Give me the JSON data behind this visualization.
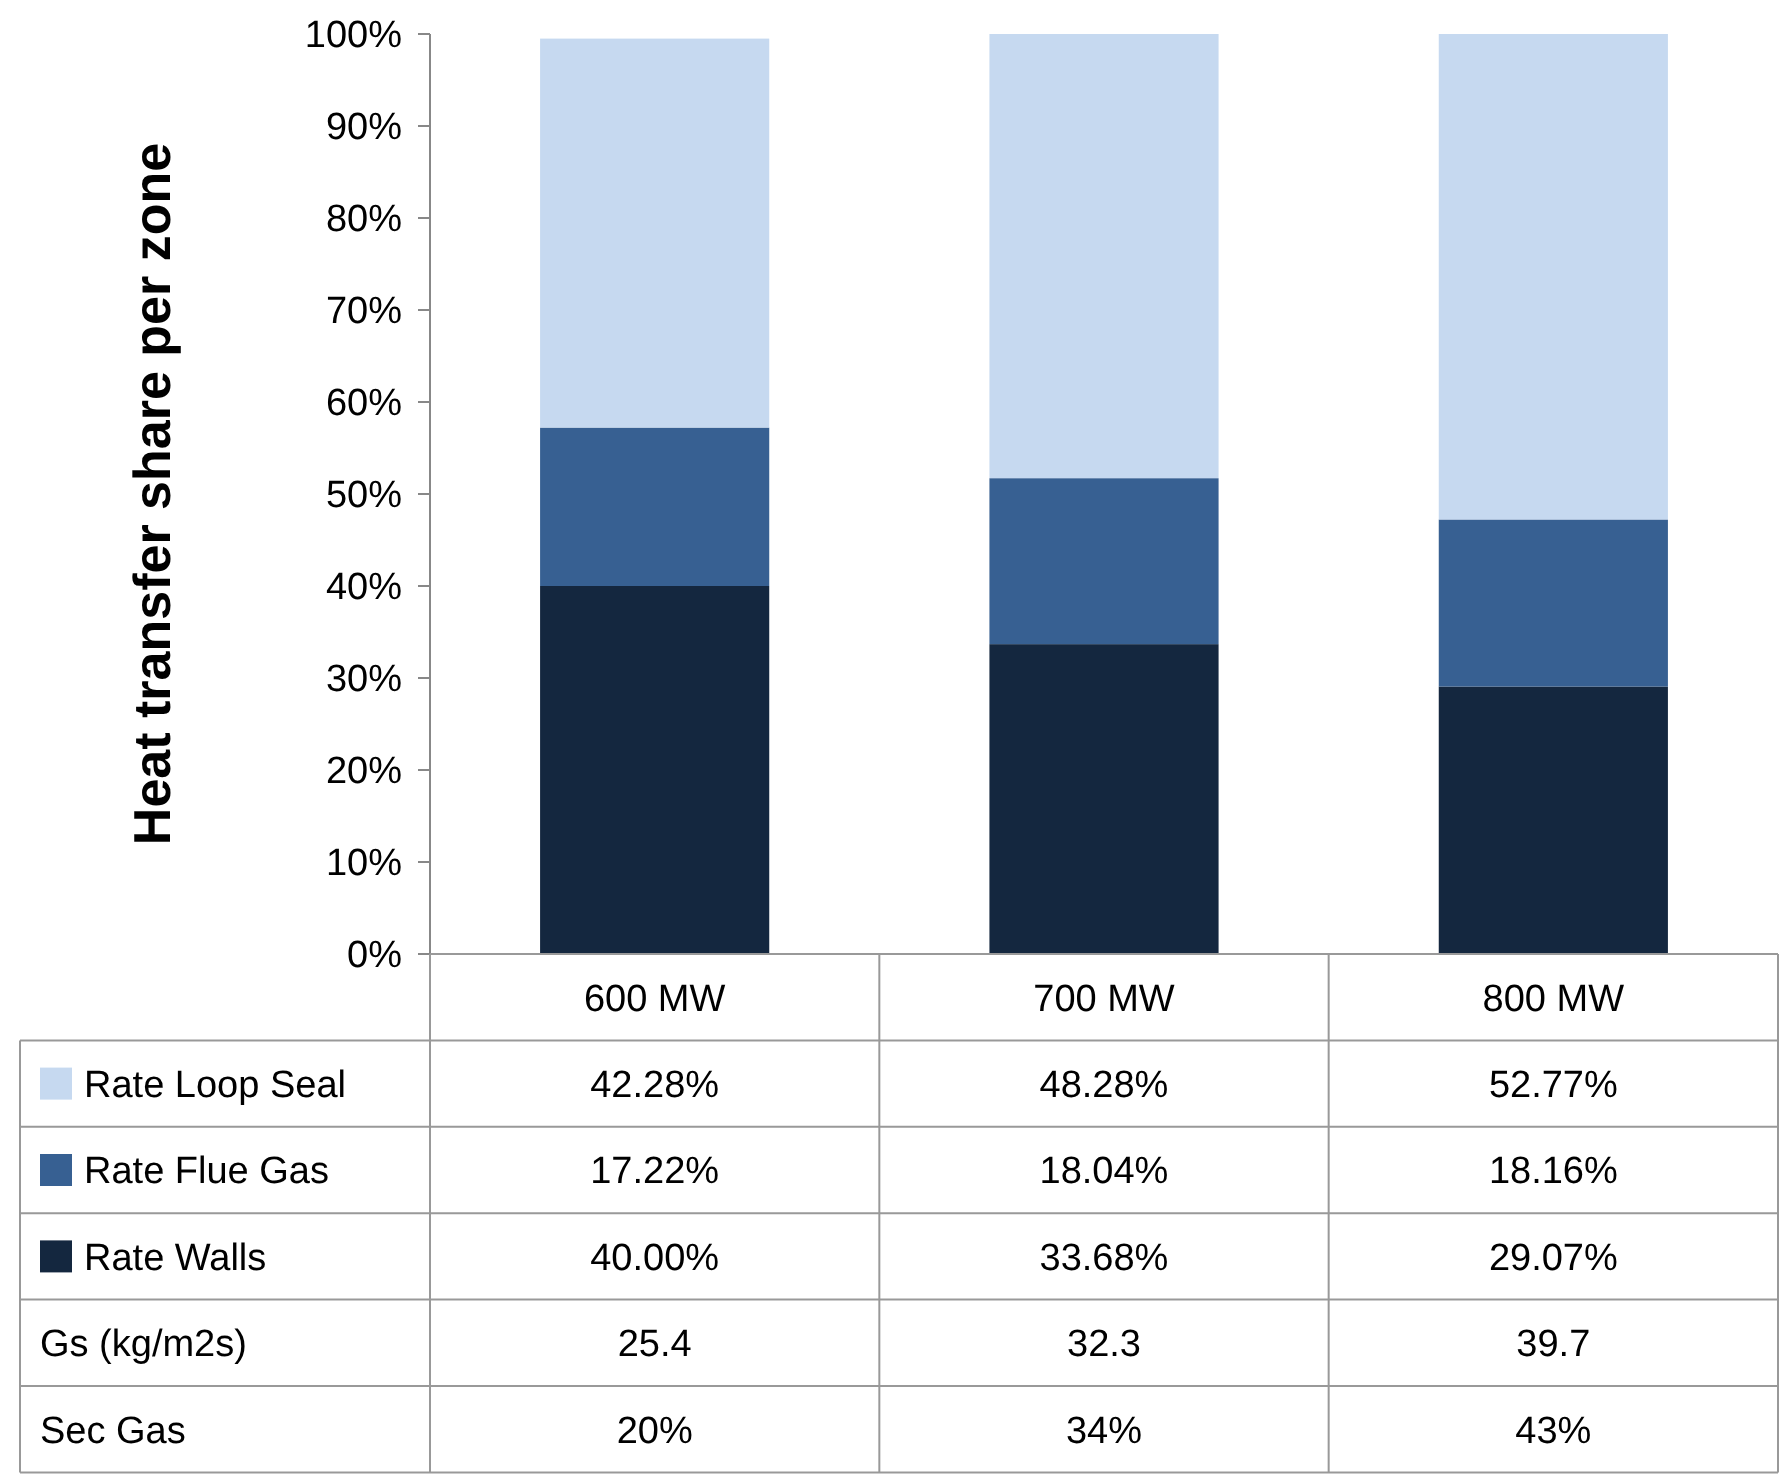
{
  "chart_data": {
    "type": "bar",
    "stacked": true,
    "ylabel": "Heat transfer share per zone",
    "categories": [
      "600 MW",
      "700 MW",
      "800 MW"
    ],
    "series": [
      {
        "name": "Rate Walls",
        "color": "#14273f",
        "values": [
          40.0,
          33.68,
          29.07
        ],
        "value_labels": [
          "40.00%",
          "33.68%",
          "29.07%"
        ]
      },
      {
        "name": "Rate Flue Gas",
        "color": "#376092",
        "values": [
          17.22,
          18.04,
          18.16
        ],
        "value_labels": [
          "17.22%",
          "18.04%",
          "18.16%"
        ]
      },
      {
        "name": "Rate Loop Seal",
        "color": "#c6d9f0",
        "values": [
          42.28,
          48.28,
          52.77
        ],
        "value_labels": [
          "42.28%",
          "48.28%",
          "52.77%"
        ]
      }
    ],
    "ylim": [
      0,
      100
    ],
    "yticks": [
      {
        "value": 0,
        "label": "0%"
      },
      {
        "value": 10,
        "label": "10%"
      },
      {
        "value": 20,
        "label": "20%"
      },
      {
        "value": 30,
        "label": "30%"
      },
      {
        "value": 40,
        "label": "40%"
      },
      {
        "value": 50,
        "label": "50%"
      },
      {
        "value": 60,
        "label": "60%"
      },
      {
        "value": 70,
        "label": "70%"
      },
      {
        "value": 80,
        "label": "80%"
      },
      {
        "value": 90,
        "label": "90%"
      },
      {
        "value": 100,
        "label": "100%"
      }
    ],
    "grid": false,
    "legend": "left",
    "annotations": [
      "Gs (kg/m2s)",
      "25.4",
      "32.3",
      "39.7",
      "Sec Gas",
      "20%",
      "34%",
      "43%"
    ]
  }
}
